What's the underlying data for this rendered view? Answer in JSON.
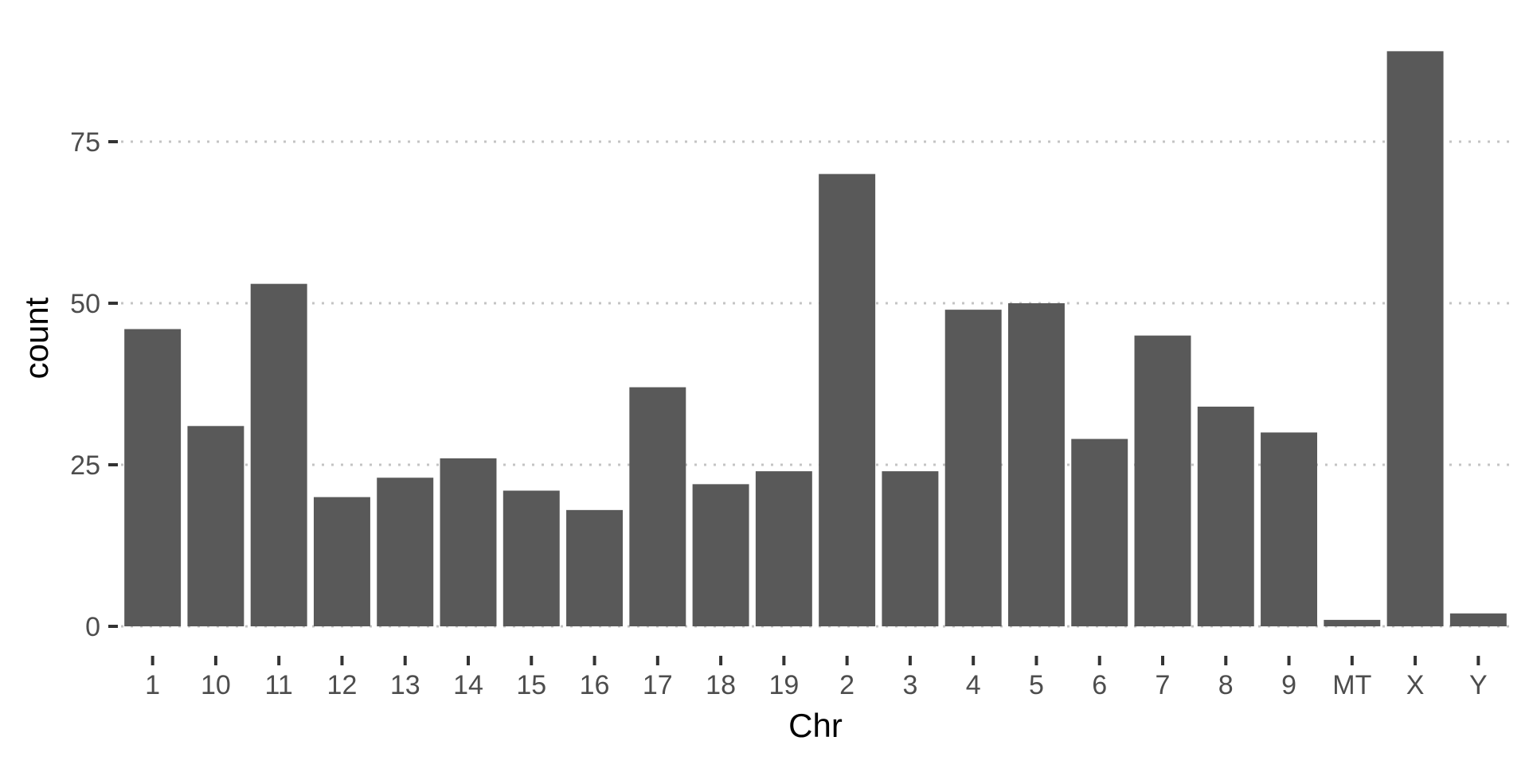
{
  "chart_data": {
    "type": "bar",
    "title": "",
    "xlabel": "Chr",
    "ylabel": "count",
    "categories": [
      "1",
      "10",
      "11",
      "12",
      "13",
      "14",
      "15",
      "16",
      "17",
      "18",
      "19",
      "2",
      "3",
      "4",
      "5",
      "6",
      "7",
      "8",
      "9",
      "MT",
      "X",
      "Y"
    ],
    "values": [
      46,
      31,
      53,
      20,
      23,
      26,
      21,
      18,
      37,
      22,
      24,
      70,
      24,
      49,
      50,
      29,
      45,
      34,
      30,
      1,
      89,
      2
    ],
    "ylim": [
      0,
      92
    ],
    "yticks": [
      0,
      25,
      50,
      75
    ],
    "grid": "horizontal dotted",
    "legend": "none",
    "colors": {
      "bar": "#595959",
      "grid": "#c4c4c4",
      "tick_text": "#4d4d4d"
    }
  }
}
